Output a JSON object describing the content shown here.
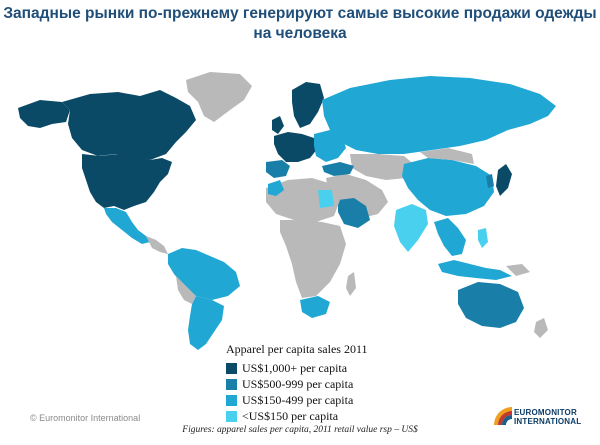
{
  "title": "Западные рынки по-прежнему генерируют самые высокие продажи одежды на человека",
  "legend": {
    "title": "Apparel per capita sales 2011",
    "items": [
      {
        "label": "US$1,000+ per capita",
        "color": "#0b4a66"
      },
      {
        "label": "US$500-999 per capita",
        "color": "#1a7fa8"
      },
      {
        "label": "US$150-499 per capita",
        "color": "#20a7d4"
      },
      {
        "label": "<US$150 per capita",
        "color": "#4ad0ef"
      }
    ]
  },
  "colors": {
    "no_data": "#b9b9b9",
    "tier_1000_plus": "#0b4a66",
    "tier_500_999": "#1a7fa8",
    "tier_150_499": "#20a7d4",
    "tier_under_150": "#4ad0ef"
  },
  "copyright": "© Euromonitor International",
  "footnote": "Figures: apparel sales per capita, 2011 retail value rsp – US$",
  "logo": {
    "line1": "EUROMONITOR",
    "line2": "INTERNATIONAL"
  }
}
